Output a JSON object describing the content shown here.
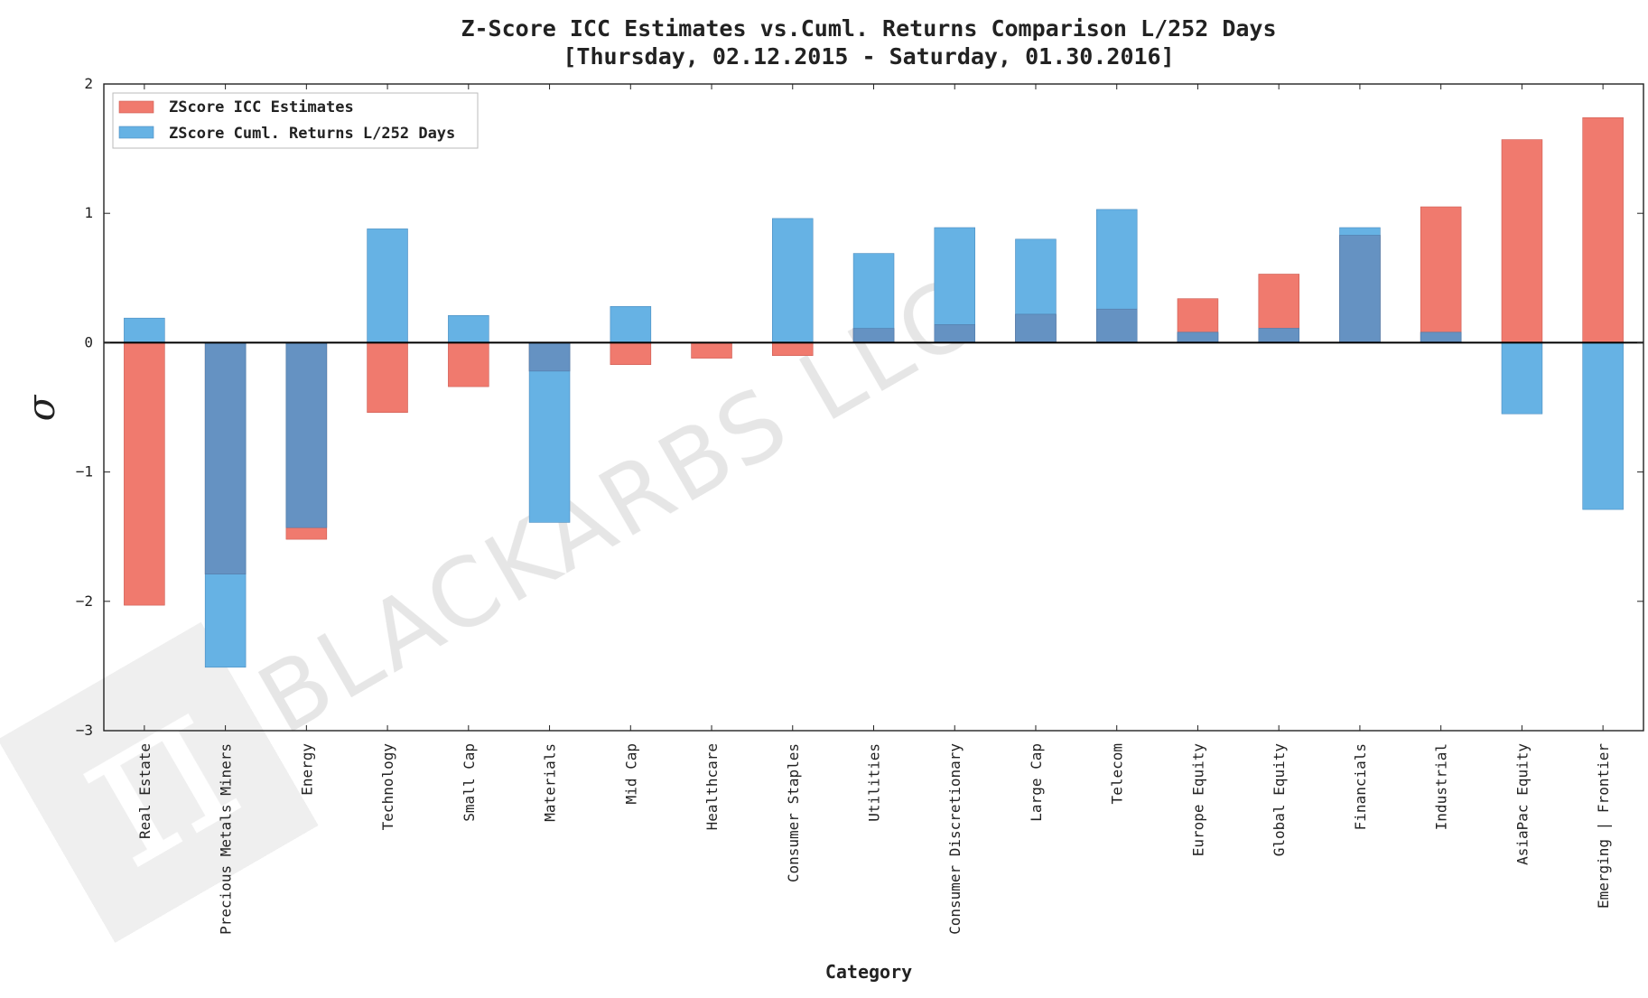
{
  "chart_data": {
    "type": "bar",
    "title": "Z-Score ICC Estimates vs.Cuml. Returns Comparison L/252 Days",
    "subtitle": "[Thursday, 02.12.2015 - Saturday, 01.30.2016]",
    "xlabel": "Category",
    "ylabel": "σ",
    "ylim": [
      -3,
      2
    ],
    "yticks": [
      -3,
      -2,
      -1,
      0,
      1,
      2
    ],
    "ytick_labels": [
      "−3",
      "−2",
      "−1",
      "0",
      "1",
      "2"
    ],
    "grid": false,
    "legend_position": "top-left",
    "categories": [
      "Real Estate",
      "Precious Metals Miners",
      "Energy",
      "Technology",
      "Small Cap",
      "Materials",
      "Mid Cap",
      "Healthcare",
      "Consumer Staples",
      "Utilities",
      "Consumer Discretionary",
      "Large Cap",
      "Telecom",
      "Europe Equity",
      "Global Equity",
      "Financials",
      "Industrial",
      "AsiaPac Equity",
      "Emerging | Frontier"
    ],
    "series": [
      {
        "name": "ZScore ICC Estimates",
        "color": "#f07a6e",
        "values": [
          -2.03,
          -1.79,
          -1.52,
          -0.54,
          -0.34,
          -0.22,
          -0.17,
          -0.12,
          -0.1,
          0.11,
          0.14,
          0.22,
          0.26,
          0.34,
          0.53,
          0.83,
          1.05,
          1.57,
          1.74
        ]
      },
      {
        "name": "ZScore Cuml. Returns L/252 Days",
        "color": "#66b2e4",
        "values": [
          0.19,
          -2.51,
          -1.43,
          0.88,
          0.21,
          -1.39,
          0.28,
          0.0,
          0.96,
          0.69,
          0.89,
          0.8,
          1.03,
          0.08,
          0.11,
          0.89,
          0.08,
          -0.55,
          -1.29
        ]
      }
    ],
    "overlap_color": "#6592c2",
    "zero_line_color": "#000000"
  },
  "watermark": {
    "text": "BLACKARBS LLC",
    "symbol": "π"
  }
}
